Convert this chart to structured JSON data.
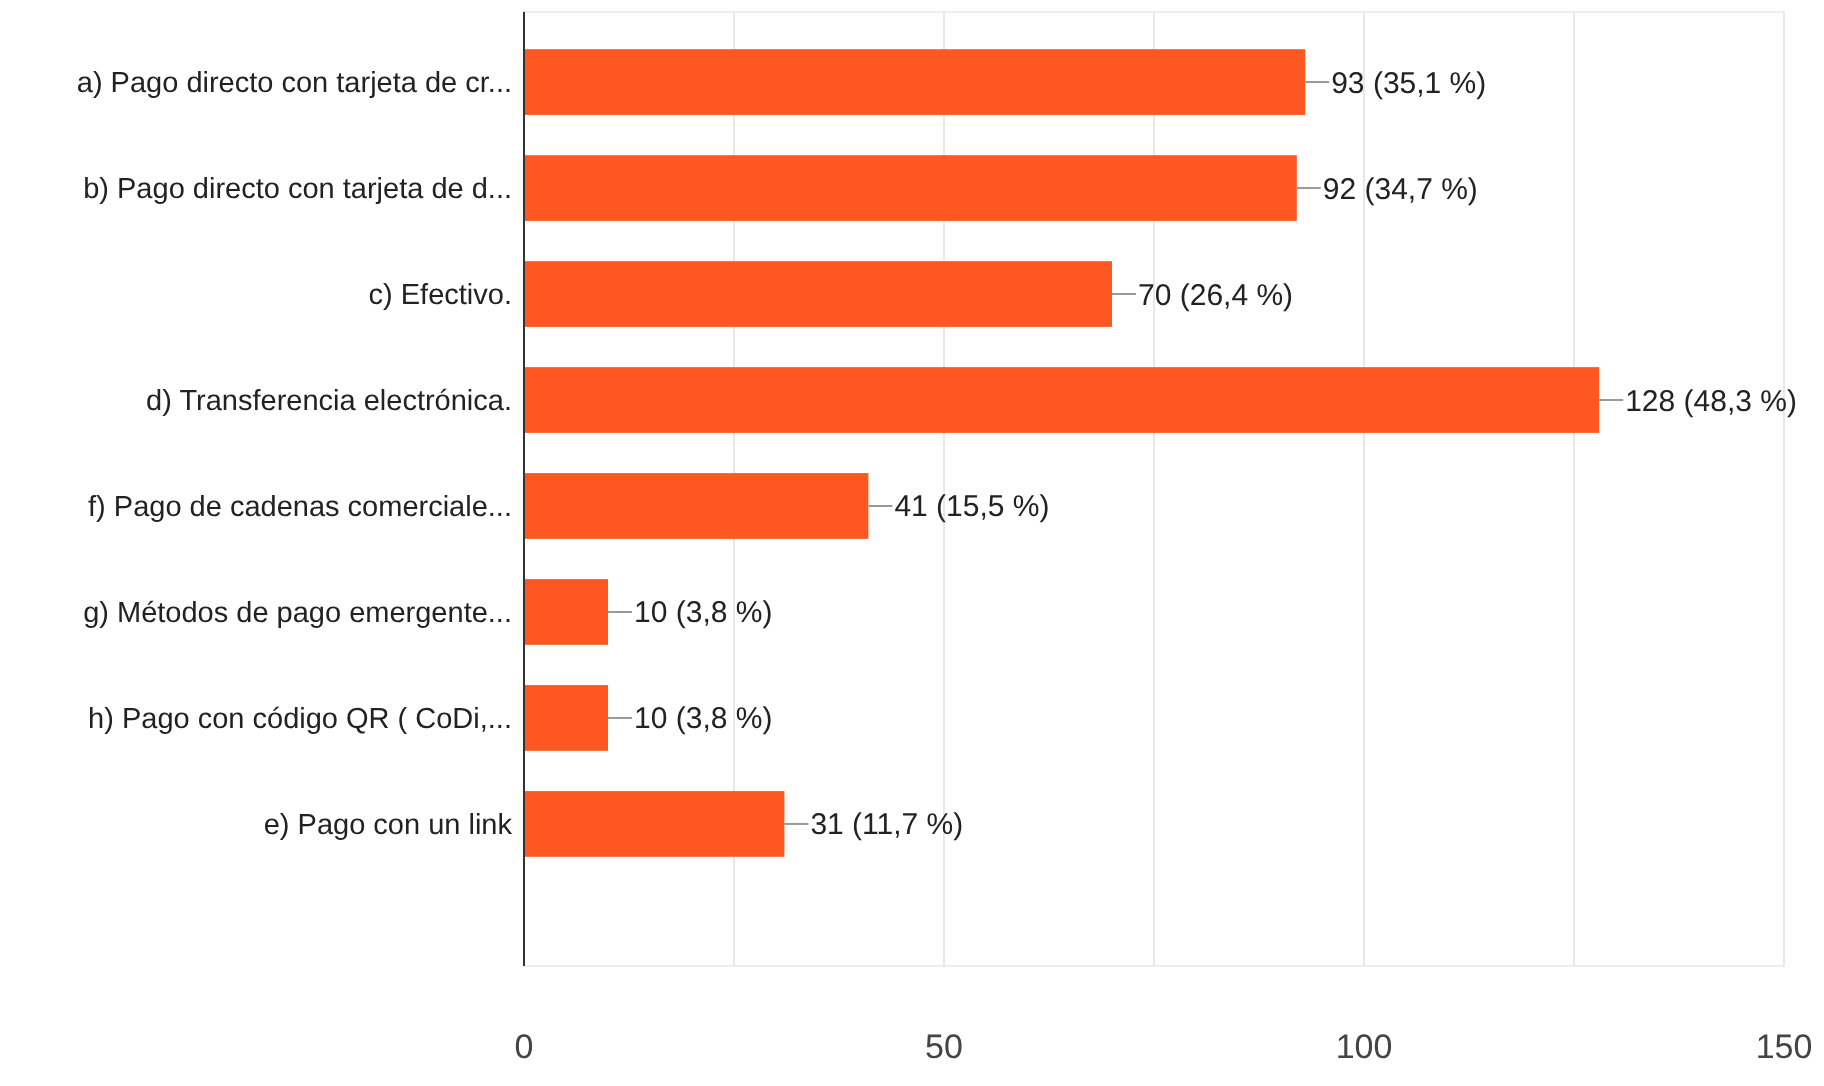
{
  "chart_data": {
    "type": "bar",
    "orientation": "horizontal",
    "categories": [
      "a) Pago directo con tarjeta de cr...",
      "b) Pago directo con tarjeta de d...",
      "c) Efectivo.",
      "d) Transferencia electrónica.",
      "f) Pago de cadenas comerciale...",
      "g) Métodos de pago emergente...",
      "h) Pago con código QR ( CoDi,...",
      "e) Pago con un link"
    ],
    "values": [
      93,
      92,
      70,
      128,
      41,
      10,
      10,
      31
    ],
    "value_labels": [
      "93 (35,1 %)",
      "92 (34,7 %)",
      "70 (26,4 %)",
      "128 (48,3 %)",
      "41 (15,5 %)",
      "10 (3,8 %)",
      "10 (3,8 %)",
      "31 (11,7 %)"
    ],
    "color": "#ff5722",
    "xlim": [
      0,
      150
    ],
    "xticks": [
      0,
      {
        "value": 25,
        "label": null
      },
      50,
      {
        "value": 75,
        "label": null
      },
      100,
      {
        "value": 125,
        "label": null
      },
      150
    ],
    "grid": "x"
  }
}
